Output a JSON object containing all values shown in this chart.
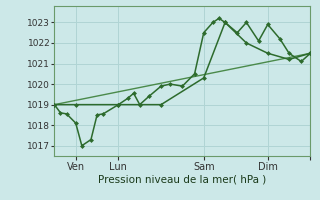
{
  "bg_color": "#cce8e8",
  "grid_color": "#b0d4d4",
  "line_color_main": "#2d6b2d",
  "line_color_trend": "#4a8a4a",
  "xlabel": "Pression niveau de la mer( hPa )",
  "ylim": [
    1016.5,
    1023.8
  ],
  "yticks": [
    1017,
    1018,
    1019,
    1020,
    1021,
    1022,
    1023
  ],
  "xlim": [
    0,
    84
  ],
  "xtick_positions": [
    7,
    21,
    49,
    70,
    84
  ],
  "xtick_labels": [
    "Ven",
    "Lun",
    "Sam",
    "Dim",
    ""
  ],
  "series1_x": [
    0,
    2,
    4,
    7,
    9,
    12,
    14,
    16,
    21,
    24,
    26,
    28,
    31,
    35,
    38,
    42,
    46,
    49,
    52,
    54,
    56,
    60,
    63,
    67,
    70,
    74,
    77,
    81,
    84
  ],
  "series1_y": [
    1019.0,
    1018.6,
    1018.55,
    1018.1,
    1017.0,
    1017.3,
    1018.5,
    1018.55,
    1019.0,
    1019.3,
    1019.55,
    1019.0,
    1019.4,
    1019.9,
    1020.0,
    1019.9,
    1020.5,
    1022.5,
    1023.0,
    1023.2,
    1023.0,
    1022.5,
    1023.0,
    1022.1,
    1022.9,
    1022.2,
    1021.5,
    1021.1,
    1021.5
  ],
  "series2_x": [
    0,
    7,
    21,
    35,
    49,
    56,
    63,
    70,
    77,
    84
  ],
  "series2_y": [
    1019.0,
    1019.0,
    1019.0,
    1019.0,
    1020.3,
    1023.0,
    1022.0,
    1021.5,
    1021.2,
    1021.5
  ],
  "trend_x": [
    0,
    84
  ],
  "trend_y": [
    1019.0,
    1021.5
  ]
}
